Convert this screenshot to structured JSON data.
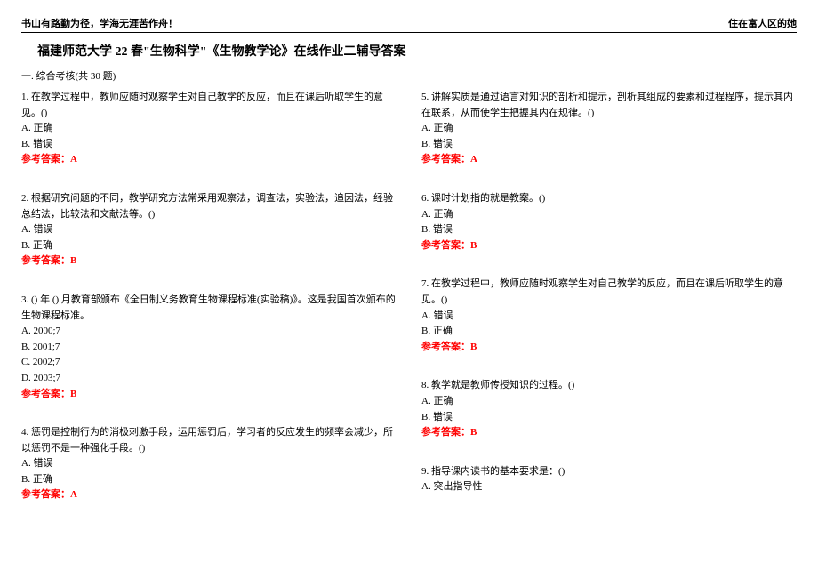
{
  "header": {
    "left": "书山有路勤为径，学海无涯苦作舟！",
    "right": "住在富人区的她"
  },
  "title": "福建师范大学 22 春\"生物科学\"《生物教学论》在线作业二辅导答案",
  "section": "一. 综合考核(共 30 题)",
  "ansLabel": "参考答案：",
  "colors": {
    "answer": "#ff0000",
    "text": "#000000",
    "bg": "#ffffff"
  },
  "left": [
    {
      "stem": "1. 在教学过程中，教师应随时观察学生对自己教学的反应，而且在课后听取学生的意见。()",
      "opts": [
        "A. 正确",
        "B. 错误"
      ],
      "ans": "A"
    },
    {
      "stem": "2. 根据研究问题的不同，教学研究方法常采用观察法，调查法，实验法，追因法，经验总结法，比较法和文献法等。()",
      "opts": [
        "A. 错误",
        "B. 正确"
      ],
      "ans": "B"
    },
    {
      "stem": "3. () 年 () 月教育部颁布《全日制义务教育生物课程标准(实验稿)》。这是我国首次颁布的生物课程标准。",
      "opts": [
        "A. 2000;7",
        "B. 2001;7",
        "C. 2002;7",
        "D. 2003;7"
      ],
      "ans": "B"
    },
    {
      "stem": "4. 惩罚是控制行为的消极刺激手段，运用惩罚后，学习者的反应发生的频率会减少，所以惩罚不是一种强化手段。()",
      "opts": [
        "A. 错误",
        "B. 正确"
      ],
      "ans": "A"
    }
  ],
  "right": [
    {
      "stem": "5. 讲解实质是通过语言对知识的剖析和提示，剖析其组成的要素和过程程序，提示其内在联系，从而使学生把握其内在规律。()",
      "opts": [
        "A. 正确",
        "B. 错误"
      ],
      "ans": "A"
    },
    {
      "stem": "6. 课时计划指的就是教案。()",
      "opts": [
        "A. 正确",
        "B. 错误"
      ],
      "ans": "B"
    },
    {
      "stem": "7. 在教学过程中，教师应随时观察学生对自己教学的反应，而且在课后听取学生的意见。()",
      "opts": [
        "A. 错误",
        "B. 正确"
      ],
      "ans": "B"
    },
    {
      "stem": "8. 教学就是教师传授知识的过程。()",
      "opts": [
        "A. 正确",
        "B. 错误"
      ],
      "ans": "B"
    },
    {
      "stem": "9. 指导课内读书的基本要求是：()",
      "opts": [
        "A. 突出指导性"
      ],
      "ans": null
    }
  ]
}
